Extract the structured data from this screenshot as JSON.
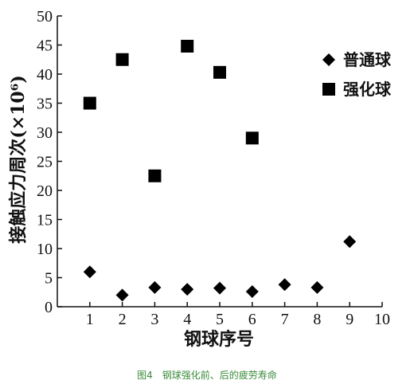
{
  "caption": "图4　钢球强化前、后的疲劳寿命",
  "chart_data": {
    "type": "scatter",
    "xlabel": "钢球序号",
    "ylabel": "接触应力周次(×10⁶)",
    "xlim": [
      0,
      10
    ],
    "ylim": [
      0,
      50
    ],
    "xticks": [
      1,
      2,
      3,
      4,
      5,
      6,
      7,
      8,
      9,
      10
    ],
    "yticks": [
      0,
      5,
      10,
      15,
      20,
      25,
      30,
      35,
      40,
      45,
      50
    ],
    "legend_position": "top-right",
    "grid": false,
    "series": [
      {
        "name": "普通球",
        "marker": "diamond",
        "color": "#000000",
        "points": [
          {
            "x": 1,
            "y": 6.0
          },
          {
            "x": 2,
            "y": 2.0
          },
          {
            "x": 3,
            "y": 3.3
          },
          {
            "x": 4,
            "y": 3.0
          },
          {
            "x": 5,
            "y": 3.2
          },
          {
            "x": 6,
            "y": 2.6
          },
          {
            "x": 7,
            "y": 3.8
          },
          {
            "x": 8,
            "y": 3.3
          },
          {
            "x": 9,
            "y": 11.2
          }
        ]
      },
      {
        "name": "强化球",
        "marker": "square",
        "color": "#000000",
        "points": [
          {
            "x": 1,
            "y": 35.0
          },
          {
            "x": 2,
            "y": 42.5
          },
          {
            "x": 3,
            "y": 22.5
          },
          {
            "x": 4,
            "y": 44.8
          },
          {
            "x": 5,
            "y": 40.3
          },
          {
            "x": 6,
            "y": 29.0
          }
        ]
      }
    ]
  }
}
